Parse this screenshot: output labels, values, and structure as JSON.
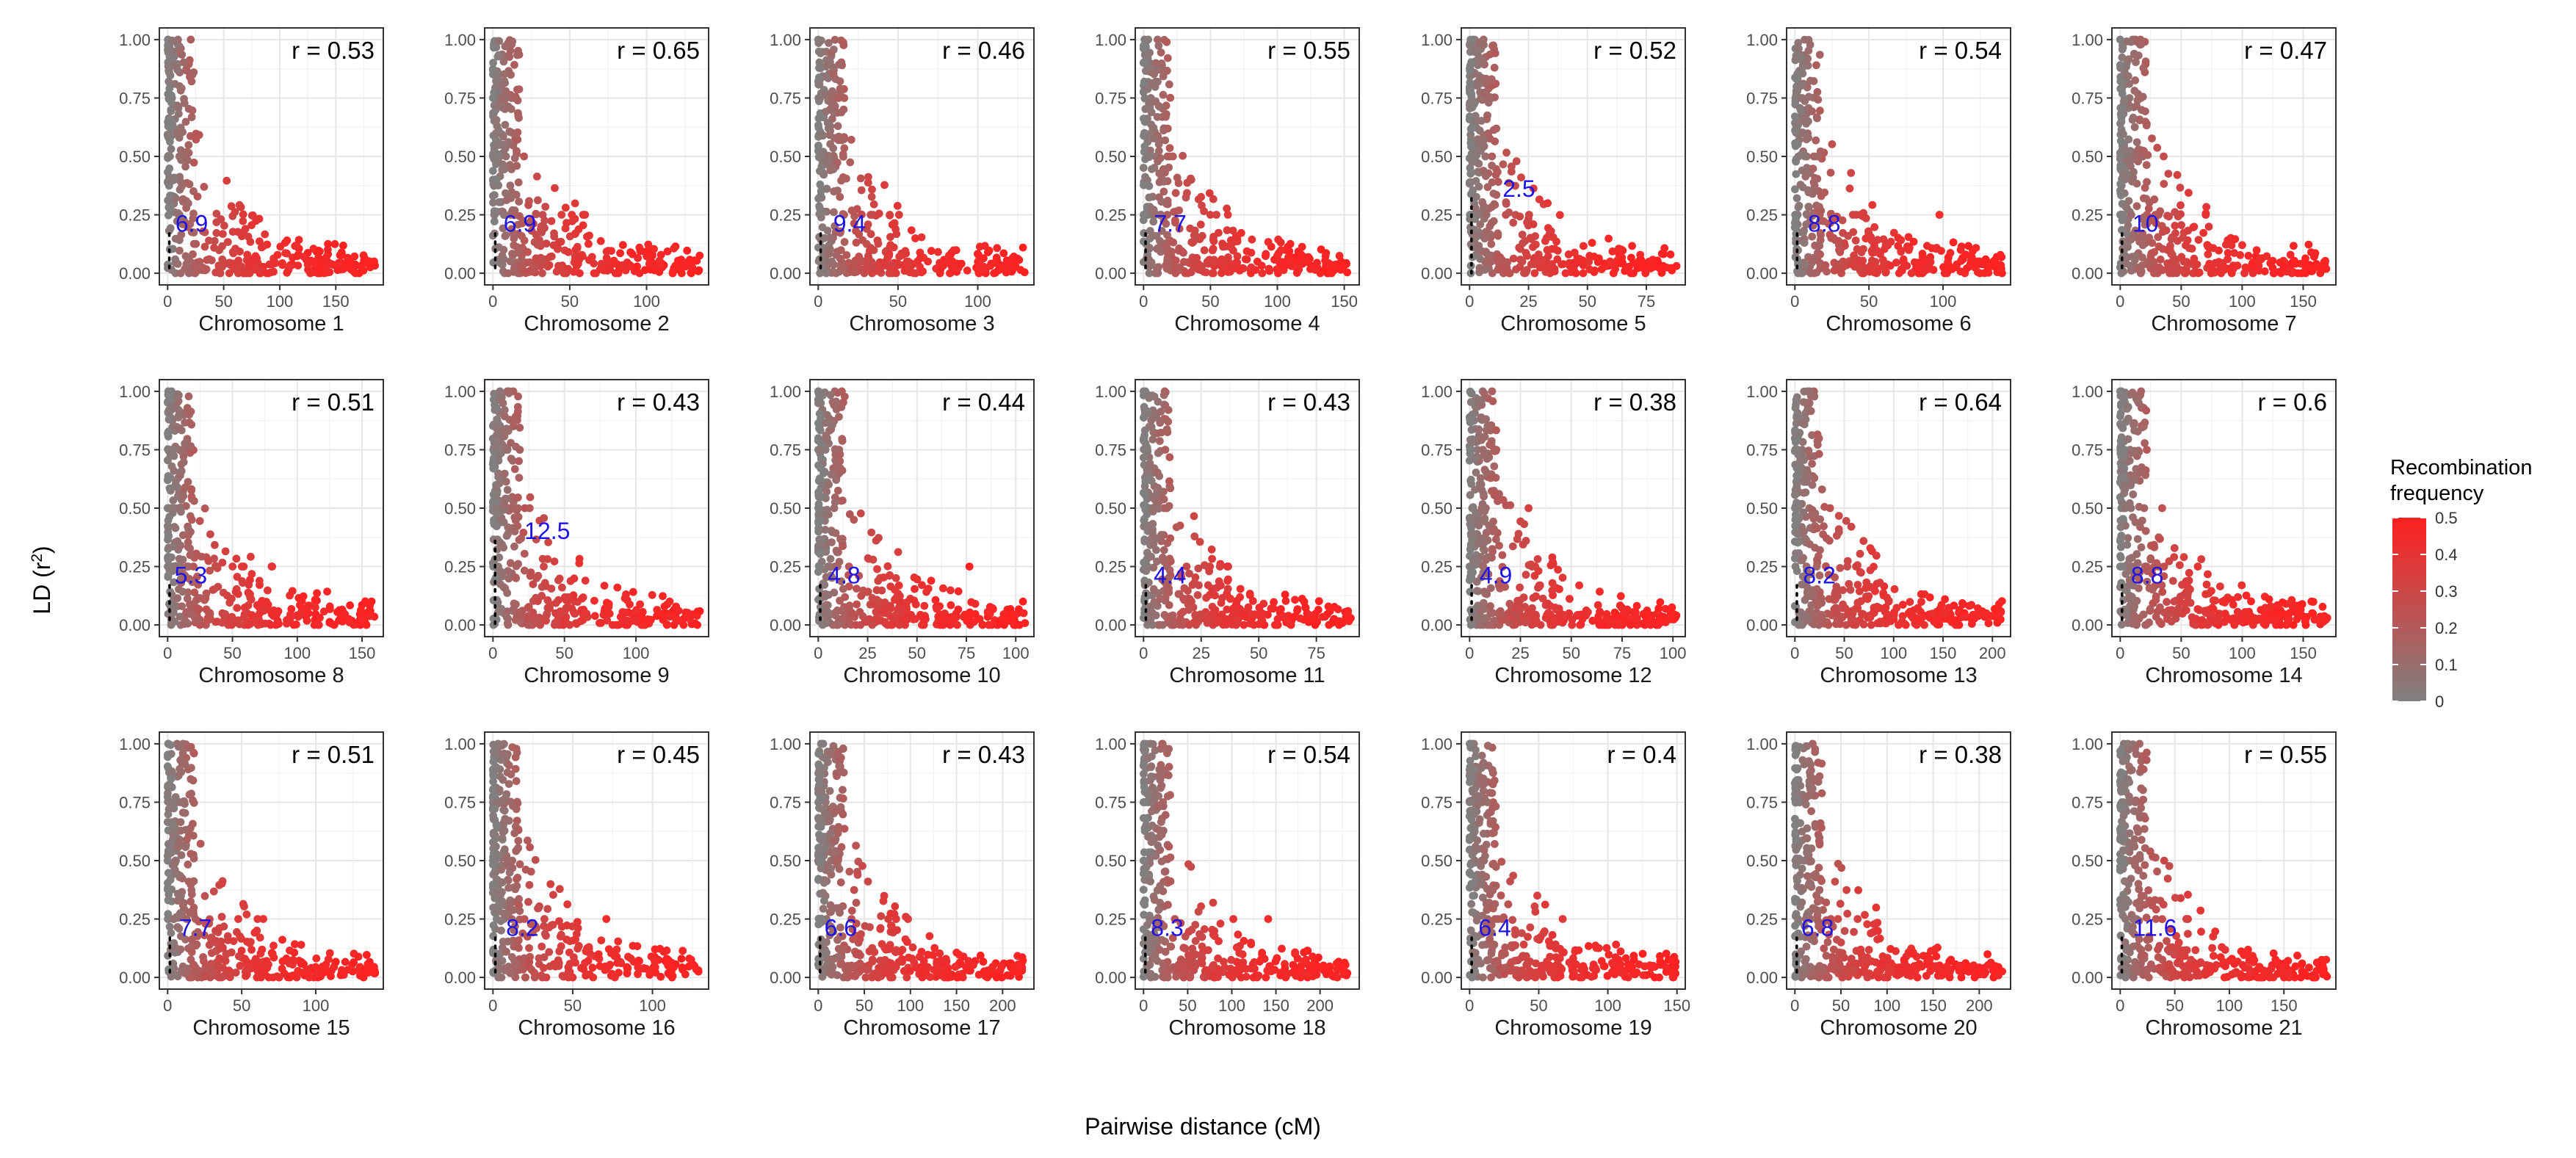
{
  "chart_data": {
    "type": "scatter",
    "figure_title": "",
    "xlabel": "Pairwise distance (cM)",
    "ylabel_prefix": "LD (r",
    "ylabel_sup": "2",
    "ylabel_suffix": ")",
    "y_ticks": [
      "0.00",
      "0.25",
      "0.50",
      "0.75",
      "1.00"
    ],
    "ylim": [
      0,
      1
    ],
    "grid": true,
    "legend": {
      "title_line1": "Recombination",
      "title_line2": "frequency",
      "placement": "right",
      "range": [
        0,
        0.5
      ],
      "tick_labels": [
        "0",
        "0.1",
        "0.2",
        "0.3",
        "0.4",
        "0.5"
      ],
      "color_low": "#808080",
      "color_high": "#ff2020"
    },
    "panels": [
      {
        "name": "Chromosome 1",
        "r": "r = 0.53",
        "decay": "6.9",
        "decay_x": 6.9,
        "decay_y": 0.19,
        "x_max": 185,
        "x_ticks": [
          0,
          50,
          100,
          150
        ],
        "cut_x": 1.5
      },
      {
        "name": "Chromosome 2",
        "r": "r = 0.65",
        "decay": "6.9",
        "decay_x": 6.9,
        "decay_y": 0.19,
        "x_max": 135,
        "x_ticks": [
          0,
          50,
          100
        ],
        "cut_x": 1.5
      },
      {
        "name": "Chromosome 3",
        "r": "r = 0.46",
        "decay": "9.4",
        "decay_x": 9.4,
        "decay_y": 0.19,
        "x_max": 130,
        "x_ticks": [
          0,
          50,
          100
        ],
        "cut_x": 1.5
      },
      {
        "name": "Chromosome 4",
        "r": "r = 0.55",
        "decay": "7.7",
        "decay_x": 7.7,
        "decay_y": 0.19,
        "x_max": 155,
        "x_ticks": [
          0,
          50,
          100,
          150
        ],
        "cut_x": 1.5
      },
      {
        "name": "Chromosome 5",
        "r": "r = 0.52",
        "decay": "2.5",
        "decay_x": 14,
        "decay_y": 0.34,
        "x_max": 88,
        "x_ticks": [
          0,
          25,
          50,
          75
        ],
        "cut_x": 0.8
      },
      {
        "name": "Chromosome 6",
        "r": "r = 0.54",
        "decay": "8.8",
        "decay_x": 8.8,
        "decay_y": 0.19,
        "x_max": 140,
        "x_ticks": [
          0,
          50,
          100
        ],
        "cut_x": 1.5
      },
      {
        "name": "Chromosome 7",
        "r": "r = 0.47",
        "decay": "10",
        "decay_x": 10,
        "decay_y": 0.19,
        "x_max": 170,
        "x_ticks": [
          0,
          50,
          100,
          150
        ],
        "cut_x": 1.5
      },
      {
        "name": "Chromosome 8",
        "r": "r = 0.51",
        "decay": "5.3",
        "decay_x": 5.3,
        "decay_y": 0.19,
        "x_max": 160,
        "x_ticks": [
          0,
          50,
          100,
          150
        ],
        "cut_x": 1.5
      },
      {
        "name": "Chromosome 9",
        "r": "r = 0.43",
        "decay": "12.5",
        "decay_x": 22,
        "decay_y": 0.38,
        "x_max": 145,
        "x_ticks": [
          0,
          50,
          100
        ],
        "cut_x": 1.5
      },
      {
        "name": "Chromosome 10",
        "r": "r = 0.44",
        "decay": "4.8",
        "decay_x": 4.8,
        "decay_y": 0.19,
        "x_max": 105,
        "x_ticks": [
          0,
          25,
          50,
          75,
          100
        ],
        "cut_x": 1
      },
      {
        "name": "Chromosome 11",
        "r": "r = 0.43",
        "decay": "4.4",
        "decay_x": 4.4,
        "decay_y": 0.19,
        "x_max": 90,
        "x_ticks": [
          0,
          25,
          50,
          75
        ],
        "cut_x": 1
      },
      {
        "name": "Chromosome 12",
        "r": "r = 0.38",
        "decay": "4.9",
        "decay_x": 4.9,
        "decay_y": 0.19,
        "x_max": 102,
        "x_ticks": [
          0,
          25,
          50,
          75,
          100
        ],
        "cut_x": 1
      },
      {
        "name": "Chromosome 13",
        "r": "r = 0.64",
        "decay": "8.2",
        "decay_x": 8.2,
        "decay_y": 0.19,
        "x_max": 210,
        "x_ticks": [
          0,
          50,
          100,
          150,
          200
        ],
        "cut_x": 2
      },
      {
        "name": "Chromosome 14",
        "r": "r = 0.6",
        "decay": "8.8",
        "decay_x": 8.8,
        "decay_y": 0.19,
        "x_max": 170,
        "x_ticks": [
          0,
          50,
          100,
          150
        ],
        "cut_x": 1.5
      },
      {
        "name": "Chromosome 15",
        "r": "r = 0.51",
        "decay": "7.7",
        "decay_x": 7.7,
        "decay_y": 0.19,
        "x_max": 140,
        "x_ticks": [
          0,
          50,
          100
        ],
        "cut_x": 1.5
      },
      {
        "name": "Chromosome 16",
        "r": "r = 0.45",
        "decay": "8.2",
        "decay_x": 8.2,
        "decay_y": 0.19,
        "x_max": 130,
        "x_ticks": [
          0,
          50,
          100
        ],
        "cut_x": 1.5
      },
      {
        "name": "Chromosome 17",
        "r": "r = 0.43",
        "decay": "6.6",
        "decay_x": 6.6,
        "decay_y": 0.19,
        "x_max": 225,
        "x_ticks": [
          0,
          50,
          100,
          150,
          200
        ],
        "cut_x": 2
      },
      {
        "name": "Chromosome 18",
        "r": "r = 0.54",
        "decay": "8.3",
        "decay_x": 8.3,
        "decay_y": 0.19,
        "x_max": 235,
        "x_ticks": [
          0,
          50,
          100,
          150,
          200
        ],
        "cut_x": 2
      },
      {
        "name": "Chromosome 19",
        "r": "r = 0.4",
        "decay": "6.4",
        "decay_x": 6.4,
        "decay_y": 0.19,
        "x_max": 150,
        "x_ticks": [
          0,
          50,
          100,
          150
        ],
        "cut_x": 1.5
      },
      {
        "name": "Chromosome 20",
        "r": "r = 0.38",
        "decay": "6.8",
        "decay_x": 6.8,
        "decay_y": 0.19,
        "x_max": 225,
        "x_ticks": [
          0,
          50,
          100,
          150,
          200
        ],
        "cut_x": 2
      },
      {
        "name": "Chromosome 21",
        "r": "r = 0.55",
        "decay": "11.6",
        "decay_x": 11.6,
        "decay_y": 0.19,
        "x_max": 190,
        "x_ticks": [
          0,
          50,
          100,
          150
        ],
        "cut_x": 1.5
      }
    ]
  }
}
